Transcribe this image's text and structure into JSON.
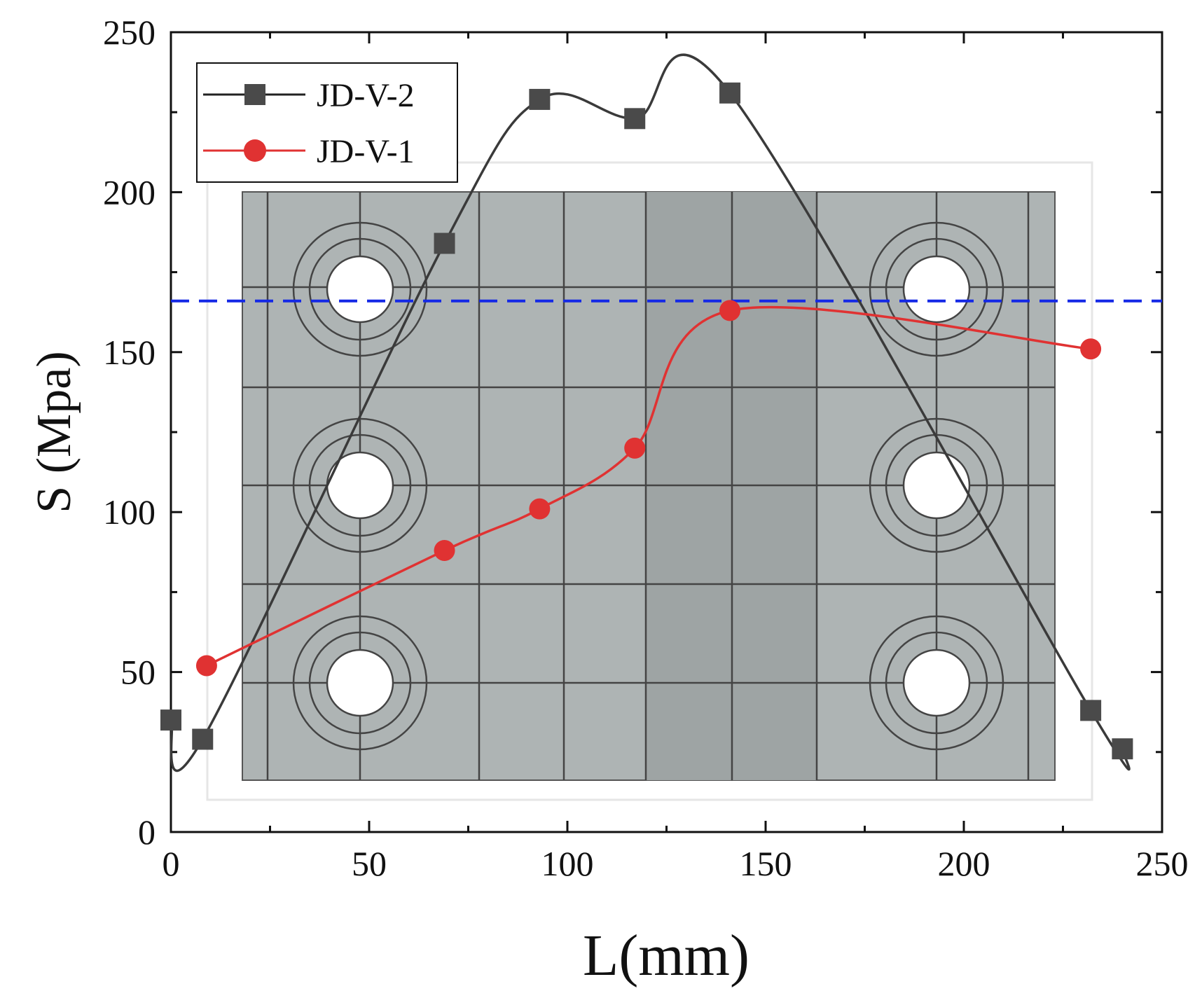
{
  "chart_data": {
    "type": "line",
    "title": "",
    "xlabel": "L(mm)",
    "ylabel": "S (Mpa)",
    "xlim": [
      0,
      250
    ],
    "ylim": [
      0,
      250
    ],
    "xticks": [
      0,
      50,
      100,
      150,
      200,
      250
    ],
    "yticks": [
      0,
      50,
      100,
      150,
      200,
      250
    ],
    "grid": false,
    "legend_position": "top-left",
    "reference_line": {
      "y": 166,
      "color": "#1428e6",
      "style": "dashed"
    },
    "series": [
      {
        "name": "JD-V-2",
        "marker": "square",
        "color": "#3a3a3a",
        "x": [
          0,
          8,
          69,
          93,
          117,
          141,
          232,
          240
        ],
        "y": [
          35,
          29,
          184,
          229,
          223,
          231,
          38,
          26
        ]
      },
      {
        "name": "JD-V-1",
        "marker": "circle",
        "color": "#e03232",
        "x": [
          9,
          69,
          93,
          117,
          141,
          232
        ],
        "y": [
          52,
          88,
          101,
          120,
          163,
          151
        ]
      }
    ],
    "background_image": {
      "description_icon": "bolted-plate-mesh-icon",
      "bolt_hole_count": 6
    }
  }
}
